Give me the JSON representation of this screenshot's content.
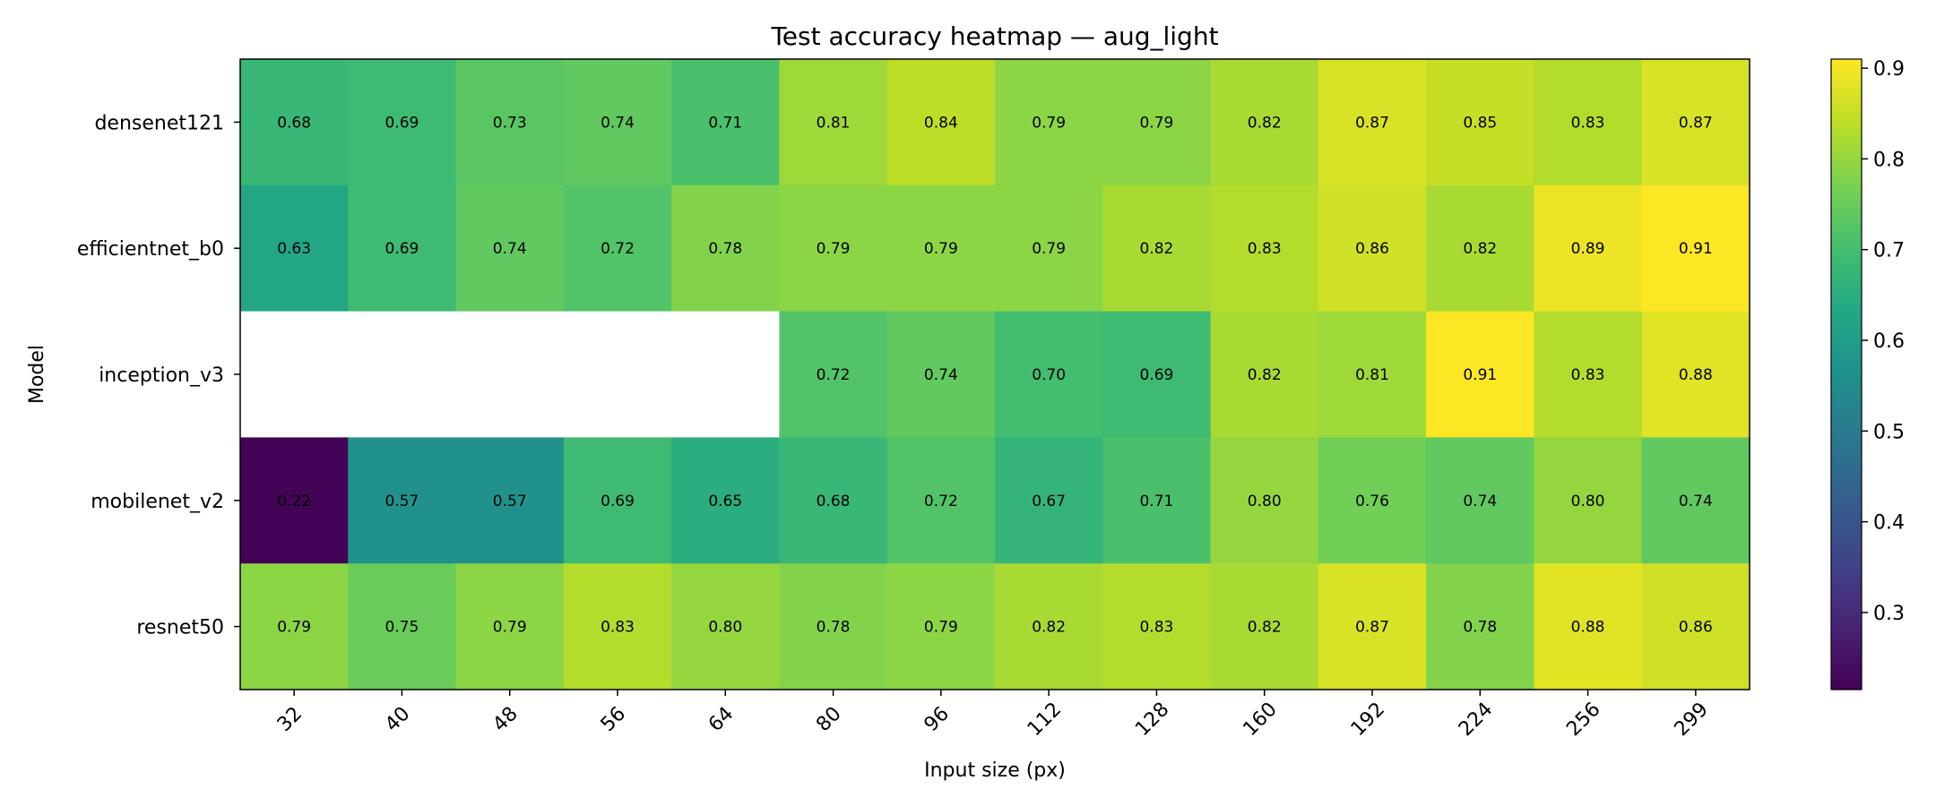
{
  "chart_data": {
    "type": "heatmap",
    "title": "Test accuracy heatmap — aug_light",
    "xlabel": "Input size (px)",
    "ylabel": "Model",
    "x_categories": [
      "32",
      "40",
      "48",
      "56",
      "64",
      "80",
      "96",
      "112",
      "128",
      "160",
      "192",
      "224",
      "256",
      "299"
    ],
    "y_categories": [
      "densenet121",
      "efficientnet_b0",
      "inception_v3",
      "mobilenet_v2",
      "resnet50"
    ],
    "values": [
      [
        0.68,
        0.69,
        0.73,
        0.74,
        0.71,
        0.81,
        0.84,
        0.79,
        0.79,
        0.82,
        0.87,
        0.85,
        0.83,
        0.87
      ],
      [
        0.63,
        0.69,
        0.74,
        0.72,
        0.78,
        0.79,
        0.79,
        0.79,
        0.82,
        0.83,
        0.86,
        0.82,
        0.89,
        0.91
      ],
      [
        null,
        null,
        null,
        null,
        null,
        0.72,
        0.74,
        0.7,
        0.69,
        0.82,
        0.81,
        0.91,
        0.83,
        0.88
      ],
      [
        0.22,
        0.57,
        0.57,
        0.69,
        0.65,
        0.68,
        0.72,
        0.67,
        0.71,
        0.8,
        0.76,
        0.74,
        0.8,
        0.74
      ],
      [
        0.79,
        0.75,
        0.79,
        0.83,
        0.8,
        0.78,
        0.79,
        0.82,
        0.83,
        0.82,
        0.87,
        0.78,
        0.88,
        0.86
      ]
    ],
    "value_format": "0.00",
    "colormap": "viridis",
    "vmin": 0.215,
    "vmax": 0.91,
    "colorbar_ticks": [
      0.3,
      0.4,
      0.5,
      0.6,
      0.7,
      0.8,
      0.9
    ],
    "colorbar_tick_labels": [
      "0.3",
      "0.4",
      "0.5",
      "0.6",
      "0.7",
      "0.8",
      "0.9"
    ],
    "grid": false,
    "missing_color": "#ffffff"
  }
}
